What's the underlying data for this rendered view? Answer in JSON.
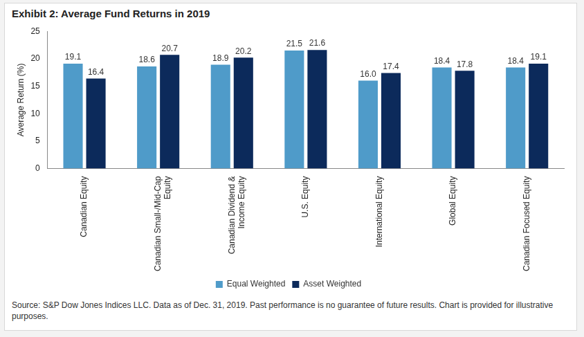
{
  "chart_data": {
    "type": "bar",
    "title": "Exhibit 2: Average Fund Returns in 2019",
    "y_label": "Average Return (%)",
    "annotations": [
      "Source: S&P Dow Jones Indices LLC. Data as of Dec. 31, 2019. Past performance is no guarantee of future results. Chart is provided for illustrative purposes."
    ],
    "categories": [
      "Canadian Equity",
      "Canadian Small-/Mid-Cap Equity",
      "Canadian Dividend & Income Equity",
      "U.S. Equity",
      "International Equity",
      "Global Equity",
      "Canadian Focused Equity"
    ],
    "series": [
      {
        "name": "Equal Weighted",
        "color": "#4f9bc9",
        "values": [
          19.1,
          18.6,
          18.9,
          21.5,
          16.0,
          18.4,
          18.4
        ],
        "value_labels": [
          "19.1",
          "18.6",
          "18.9",
          "21.5",
          "16.0",
          "18.4",
          "18.4"
        ]
      },
      {
        "name": "Asset Weighted",
        "color": "#0c2a5b",
        "values": [
          16.4,
          20.7,
          20.2,
          21.6,
          17.4,
          17.8,
          19.1
        ],
        "value_labels": [
          "16.4",
          "20.7",
          "20.2",
          "21.6",
          "17.4",
          "17.8",
          "19.1"
        ]
      }
    ],
    "ylim": [
      0,
      25
    ],
    "yticks": [
      0,
      5,
      10,
      15,
      20,
      25
    ],
    "grid": false,
    "legend": "bottom",
    "data_labels": true
  }
}
